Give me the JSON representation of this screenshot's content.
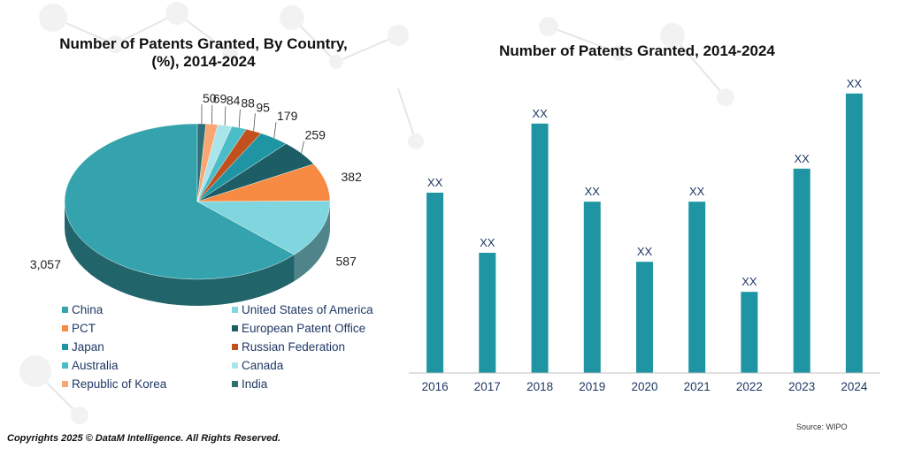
{
  "chart_data": [
    {
      "type": "pie",
      "title": "Number of Patents Granted, By Country, (%), 2014-2024",
      "categories": [
        "China",
        "United States of America",
        "PCT",
        "European Patent Office",
        "Japan",
        "Russian Federation",
        "Australia",
        "Canada",
        "Republic of Korea",
        "India"
      ],
      "values": [
        3057,
        587,
        382,
        259,
        179,
        95,
        88,
        84,
        69,
        50
      ],
      "value_labels": [
        "3,057",
        "587",
        "382",
        "259",
        "179",
        "95",
        "88",
        "84",
        "69",
        "50"
      ],
      "colors": [
        "#35a3ad",
        "#7fd6df",
        "#f78b43",
        "#1c5d66",
        "#1f95a3",
        "#c2501c",
        "#4bbcc8",
        "#a9e5ea",
        "#f9a672",
        "#2e6f78"
      ],
      "legend_position": "bottom"
    },
    {
      "type": "bar",
      "title": "Number of Patents Granted, 2014-2024",
      "categories": [
        "2016",
        "2017",
        "2018",
        "2019",
        "2020",
        "2021",
        "2022",
        "2023",
        "2024"
      ],
      "values": [
        60,
        40,
        83,
        57,
        37,
        57,
        27,
        68,
        93
      ],
      "value_labels": [
        "XX",
        "XX",
        "XX",
        "XX",
        "XX",
        "XX",
        "XX",
        "XX",
        "XX"
      ],
      "color": "#1f95a3",
      "ylim": [
        0,
        100
      ],
      "grid": false
    }
  ],
  "footer": {
    "source": "Source: WIPO",
    "copyright": "Copyrights 2025 © DataM Intelligence. All Rights Reserved."
  }
}
